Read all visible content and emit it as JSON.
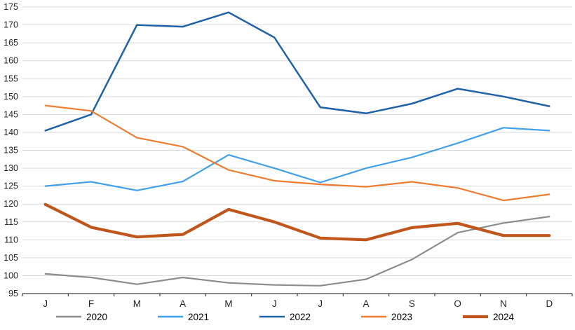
{
  "chart_data": {
    "type": "line",
    "title": "",
    "xlabel": "",
    "ylabel": "",
    "x_categories": [
      "J",
      "F",
      "M",
      "A",
      "M",
      "J",
      "J",
      "A",
      "S",
      "O",
      "N",
      "D"
    ],
    "ylim": [
      95,
      175
    ],
    "ytick_step": 5,
    "grid": true,
    "legend_position": "bottom",
    "colors": {
      "grid": "#D9D9D9",
      "axis": "#404040",
      "tick_text": "#262626"
    },
    "series": [
      {
        "name": "2020",
        "color": "#8C8C8C",
        "width": 2.2,
        "values": [
          100.5,
          99.5,
          97.6,
          99.5,
          98.0,
          97.4,
          97.2,
          99.0,
          104.5,
          112.0,
          114.7,
          116.5
        ]
      },
      {
        "name": "2021",
        "color": "#41A0E8",
        "width": 2.2,
        "values": [
          125.0,
          126.2,
          123.8,
          126.3,
          133.7,
          130.0,
          126.0,
          130.0,
          133.0,
          137.0,
          141.3,
          140.5
        ]
      },
      {
        "name": "2022",
        "color": "#2062A8",
        "width": 2.5,
        "values": [
          140.5,
          145.0,
          170.0,
          169.5,
          173.5,
          166.5,
          147.0,
          145.3,
          148.0,
          152.2,
          150.0,
          147.3
        ]
      },
      {
        "name": "2023",
        "color": "#ED7D31",
        "width": 2.2,
        "values": [
          147.5,
          146.0,
          138.5,
          136.0,
          129.5,
          126.5,
          125.5,
          124.8,
          126.2,
          124.5,
          121.0,
          122.7
        ]
      },
      {
        "name": "2024",
        "color": "#C0561B",
        "width": 4.2,
        "values": [
          119.9,
          113.5,
          110.8,
          111.5,
          118.5,
          115.0,
          110.5,
          110.0,
          113.4,
          114.6,
          111.2,
          111.2
        ]
      }
    ]
  }
}
